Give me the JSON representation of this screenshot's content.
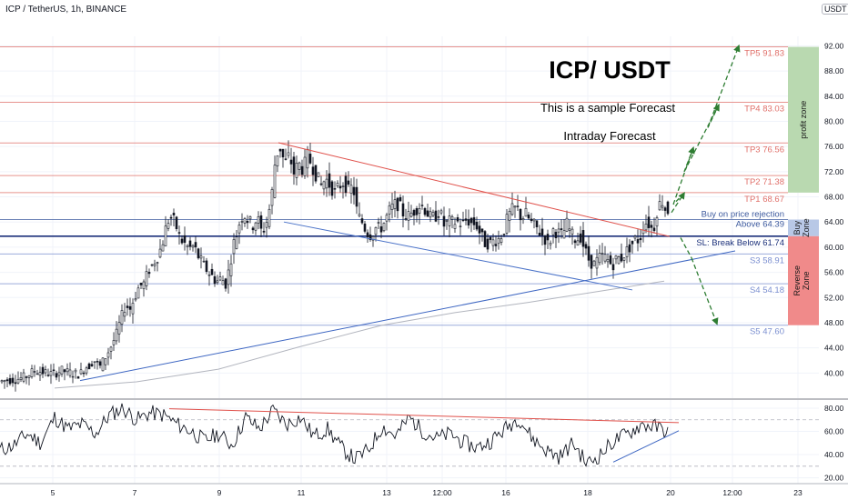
{
  "header": {
    "symbol_line": "ICP / TetherUS, 1h, BINANCE",
    "currency": "USDT"
  },
  "annotations": {
    "main_title": "ICP/ USDT",
    "line1": "This is a sample Forecast",
    "line2": "Intraday Forecast",
    "profit_zone": "profit zone",
    "buy_zone": "Buy Zone",
    "reverse_zone": "Reverse Zone"
  },
  "chart_data": [
    {
      "type": "candlestick",
      "title": "ICP / TetherUS, 1h, BINANCE",
      "x_tick_labels": [
        "5",
        "7",
        "9",
        "11",
        "13",
        "12:00",
        "16",
        "18",
        "20",
        "12:00",
        "23"
      ],
      "y_ticks": [
        40.0,
        44.0,
        48.0,
        52.0,
        56.0,
        60.0,
        64.0,
        68.0,
        72.0,
        76.0,
        80.0,
        84.0,
        88.0,
        92.0
      ],
      "y_tick_labels": [
        "40.00",
        "44.00",
        "48.00",
        "52.00",
        "56.00",
        "60.00",
        "64.00",
        "68.00",
        "72.00",
        "76.00",
        "80.00",
        "84.00",
        "88.00",
        "92.00"
      ],
      "ylim": [
        36.0,
        93.5
      ],
      "price_series_approx": [
        [
          0,
          38.6
        ],
        [
          10,
          38.9
        ],
        [
          20,
          39.0
        ],
        [
          30,
          39.4
        ],
        [
          40,
          40.4
        ],
        [
          50,
          40.1
        ],
        [
          60,
          39.8
        ],
        [
          70,
          40.4
        ],
        [
          80,
          40.0
        ],
        [
          90,
          39.8
        ],
        [
          95,
          40.9
        ],
        [
          100,
          41.2
        ],
        [
          105,
          42.1
        ],
        [
          112,
          41.0
        ],
        [
          118,
          42.6
        ],
        [
          125,
          44.5
        ],
        [
          130,
          46.2
        ],
        [
          135,
          48.7
        ],
        [
          140,
          50.8
        ],
        [
          145,
          50.2
        ],
        [
          150,
          52.1
        ],
        [
          155,
          53.8
        ],
        [
          160,
          54.2
        ],
        [
          165,
          56.2
        ],
        [
          170,
          57.3
        ],
        [
          175,
          58.5
        ],
        [
          180,
          60.3
        ],
        [
          184,
          62.9
        ],
        [
          188,
          64.7
        ],
        [
          192,
          64.5
        ],
        [
          196,
          63.1
        ],
        [
          200,
          61.3
        ],
        [
          205,
          60.5
        ],
        [
          210,
          59.8
        ],
        [
          215,
          60.2
        ],
        [
          220,
          58.5
        ],
        [
          225,
          57.3
        ],
        [
          230,
          56.2
        ],
        [
          235,
          55.4
        ],
        [
          240,
          54.5
        ],
        [
          245,
          55.1
        ],
        [
          250,
          54.2
        ],
        [
          255,
          57.3
        ],
        [
          258,
          60.3
        ],
        [
          262,
          62.0
        ],
        [
          266,
          64.4
        ],
        [
          270,
          65.3
        ],
        [
          275,
          64.2
        ],
        [
          280,
          63.5
        ],
        [
          285,
          64.7
        ],
        [
          290,
          62.1
        ],
        [
          295,
          64.1
        ],
        [
          300,
          67.3
        ],
        [
          305,
          74.6
        ],
        [
          310,
          75.7
        ],
        [
          315,
          73.2
        ],
        [
          320,
          74.6
        ],
        [
          325,
          71.8
        ],
        [
          330,
          73.3
        ],
        [
          335,
          72.3
        ],
        [
          340,
          74.5
        ],
        [
          345,
          73.0
        ],
        [
          350,
          71.3
        ],
        [
          355,
          69.8
        ],
        [
          360,
          70.9
        ],
        [
          365,
          69.7
        ],
        [
          370,
          68.7
        ],
        [
          375,
          69.7
        ],
        [
          380,
          70.4
        ],
        [
          385,
          68.9
        ],
        [
          390,
          69.7
        ],
        [
          395,
          65.0
        ],
        [
          400,
          64.0
        ],
        [
          405,
          62.4
        ],
        [
          410,
          61.9
        ],
        [
          415,
          63.1
        ],
        [
          420,
          62.9
        ],
        [
          425,
          64.1
        ],
        [
          430,
          65.8
        ],
        [
          435,
          66.7
        ],
        [
          440,
          66.9
        ],
        [
          445,
          65.4
        ],
        [
          450,
          64.8
        ],
        [
          455,
          65.5
        ],
        [
          460,
          66.2
        ],
        [
          465,
          66.8
        ],
        [
          470,
          65.8
        ],
        [
          475,
          64.7
        ],
        [
          480,
          64.8
        ],
        [
          485,
          65.8
        ],
        [
          490,
          63.5
        ],
        [
          495,
          64.1
        ],
        [
          500,
          63.9
        ],
        [
          505,
          64.0
        ],
        [
          510,
          63.6
        ],
        [
          515,
          64.4
        ],
        [
          520,
          63.8
        ],
        [
          525,
          63.7
        ],
        [
          530,
          62.1
        ],
        [
          535,
          60.7
        ],
        [
          540,
          60.6
        ],
        [
          545,
          61.0
        ],
        [
          550,
          61.3
        ],
        [
          555,
          62.2
        ],
        [
          560,
          64.8
        ],
        [
          565,
          65.9
        ],
        [
          570,
          66.3
        ],
        [
          575,
          64.6
        ],
        [
          580,
          65.3
        ],
        [
          585,
          64.0
        ],
        [
          590,
          63.4
        ],
        [
          595,
          62.4
        ],
        [
          600,
          61.6
        ],
        [
          605,
          60.2
        ],
        [
          610,
          62.7
        ],
        [
          615,
          62.3
        ],
        [
          620,
          61.9
        ],
        [
          625,
          63.7
        ],
        [
          630,
          62.1
        ],
        [
          635,
          61.1
        ],
        [
          640,
          61.7
        ],
        [
          645,
          59.5
        ],
        [
          650,
          57.7
        ],
        [
          655,
          57.3
        ],
        [
          660,
          58.2
        ],
        [
          665,
          58.7
        ],
        [
          670,
          57.9
        ],
        [
          675,
          57.1
        ],
        [
          680,
          58.3
        ],
        [
          685,
          58.3
        ],
        [
          690,
          59.3
        ],
        [
          695,
          60.2
        ],
        [
          700,
          61.2
        ],
        [
          705,
          61.1
        ],
        [
          710,
          64.1
        ],
        [
          715,
          63.7
        ],
        [
          720,
          62.6
        ],
        [
          725,
          66.5
        ],
        [
          730,
          67.3
        ],
        [
          734,
          65.8
        ]
      ],
      "horizontal_levels": [
        {
          "label": "TP5 91.83",
          "value": 91.83,
          "color": "#e0706a"
        },
        {
          "label": "TP4 83.03",
          "value": 83.03,
          "color": "#e0706a"
        },
        {
          "label": "TP3 76.56",
          "value": 76.56,
          "color": "#e0706a"
        },
        {
          "label": "TP2 71.38",
          "value": 71.38,
          "color": "#e0706a"
        },
        {
          "label": "TP1 68.67",
          "value": 68.67,
          "color": "#e0706a"
        },
        {
          "label_lines": [
            "Buy on price rejection",
            "Above 64.39"
          ],
          "value": 64.39,
          "color": "#3d5a9e"
        },
        {
          "label": "SL: Break Below 61.74",
          "value": 61.74,
          "color": "#1a2f7a"
        },
        {
          "label": "S3 58.91",
          "value": 58.91,
          "color": "#7b8fd0"
        },
        {
          "label": "S4 54.18",
          "value": 54.18,
          "color": "#7b8fd0"
        },
        {
          "label": "S5 47.60",
          "value": 47.6,
          "color": "#7b8fd0"
        }
      ],
      "zones": [
        {
          "name": "profit zone",
          "from": 68.67,
          "to": 91.83,
          "color": "#b9d9b0"
        },
        {
          "name": "Buy Zone",
          "from": 61.74,
          "to": 64.39,
          "color": "#b8c8e6"
        },
        {
          "name": "Reverse Zone",
          "from": 47.6,
          "to": 61.74,
          "color": "#f08a8a"
        }
      ]
    },
    {
      "type": "line",
      "title": "",
      "y_ticks": [
        20.0,
        40.0,
        60.0,
        80.0
      ],
      "y_tick_labels": [
        "20.00",
        "40.00",
        "60.00",
        "80.00"
      ],
      "ylim": [
        15,
        87
      ],
      "reference_lines": [
        70,
        30
      ],
      "series_approx": [
        [
          0,
          44
        ],
        [
          15,
          48
        ],
        [
          30,
          58
        ],
        [
          45,
          50
        ],
        [
          60,
          72
        ],
        [
          75,
          62
        ],
        [
          90,
          66
        ],
        [
          105,
          58
        ],
        [
          120,
          74
        ],
        [
          135,
          80
        ],
        [
          150,
          70
        ],
        [
          165,
          76
        ],
        [
          180,
          74
        ],
        [
          195,
          66
        ],
        [
          210,
          60
        ],
        [
          225,
          52
        ],
        [
          240,
          58
        ],
        [
          255,
          48
        ],
        [
          270,
          72
        ],
        [
          285,
          62
        ],
        [
          300,
          78
        ],
        [
          315,
          66
        ],
        [
          330,
          72
        ],
        [
          345,
          56
        ],
        [
          360,
          62
        ],
        [
          375,
          46
        ],
        [
          390,
          36
        ],
        [
          405,
          44
        ],
        [
          420,
          64
        ],
        [
          435,
          56
        ],
        [
          450,
          72
        ],
        [
          465,
          60
        ],
        [
          480,
          54
        ],
        [
          495,
          58
        ],
        [
          510,
          50
        ],
        [
          525,
          46
        ],
        [
          540,
          52
        ],
        [
          555,
          62
        ],
        [
          570,
          72
        ],
        [
          585,
          54
        ],
        [
          600,
          44
        ],
        [
          615,
          38
        ],
        [
          630,
          50
        ],
        [
          645,
          32
        ],
        [
          660,
          40
        ],
        [
          675,
          52
        ],
        [
          690,
          58
        ],
        [
          705,
          66
        ],
        [
          720,
          64
        ],
        [
          734,
          60
        ]
      ]
    }
  ]
}
